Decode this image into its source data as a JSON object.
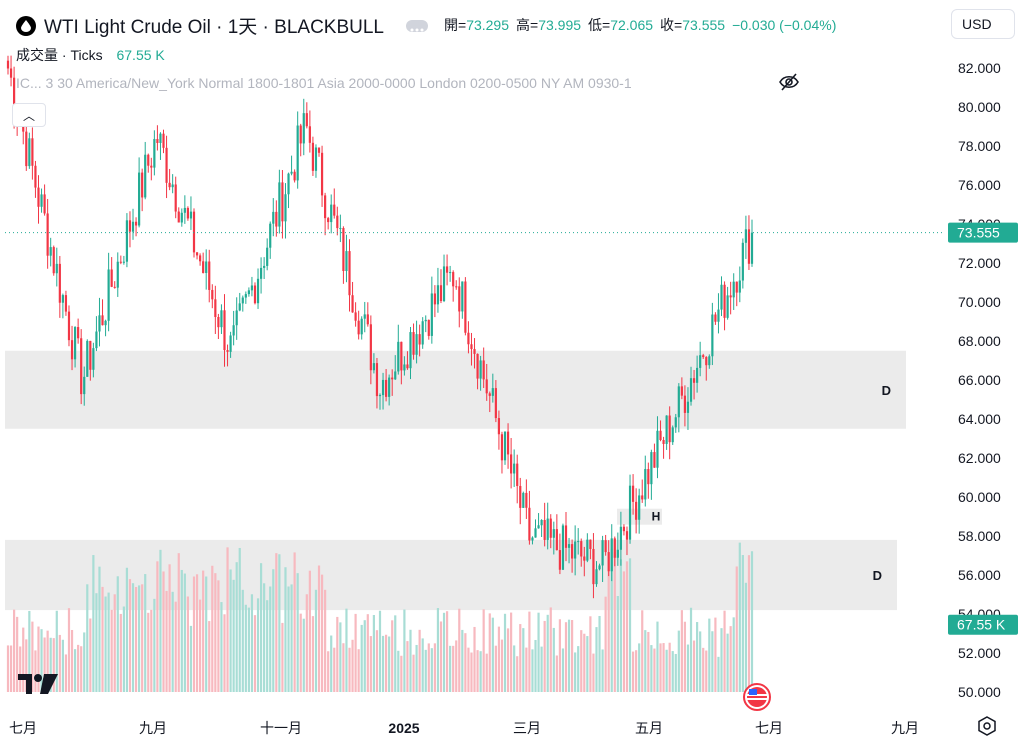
{
  "header": {
    "title": "WTI Light Crude Oil · 1天 · BLACKBULL",
    "ohlc": [
      {
        "label": "開=",
        "value": "73.295"
      },
      {
        "label": "高=",
        "value": "73.995"
      },
      {
        "label": "低=",
        "value": "72.065"
      },
      {
        "label": "收=",
        "value": "73.555"
      },
      {
        "label": "",
        "value": "−0.030 (−0.04%)"
      }
    ],
    "volume_label": "成交量 · Ticks",
    "volume_value": "67.55 K",
    "sessions_text": "IC... 3 30 America/New_York Normal 1800-1801 Asia 2000-0000 London 0200-0500 NY AM 0930-1",
    "currency": "USD",
    "collapse_glyph": "︿"
  },
  "chart_data": {
    "type": "candlestick",
    "y_axis": {
      "ticks": [
        "82.000",
        "80.000",
        "78.000",
        "76.000",
        "74.000",
        "72.000",
        "70.000",
        "68.000",
        "66.000",
        "64.000",
        "62.000",
        "60.000",
        "58.000",
        "56.000",
        "54.000",
        "52.000",
        "50.000"
      ],
      "range": [
        49,
        83.5
      ]
    },
    "x_axis": {
      "ticks": [
        "七月",
        "九月",
        "十一月",
        "2025",
        "三月",
        "五月",
        "七月",
        "九月"
      ]
    },
    "last_price": "73.555",
    "last_volume": "67.55 K",
    "zones": [
      {
        "label": "D",
        "from": 63.5,
        "to": 67.5
      },
      {
        "label": "D",
        "from": 54.2,
        "to": 57.8
      }
    ],
    "zone_small": {
      "label": "H",
      "value": 59.0
    },
    "key_closes": [
      {
        "date": "2024-07",
        "price": 82.0
      },
      {
        "date": "2024-09",
        "price": 66.0
      },
      {
        "date": "2024-10",
        "price": 78.5
      },
      {
        "date": "2024-12",
        "price": 67.5
      },
      {
        "date": "2025-01",
        "price": 79.0
      },
      {
        "date": "2025-03",
        "price": 65.8
      },
      {
        "date": "2025-04",
        "price": 71.5
      },
      {
        "date": "2025-04",
        "price": 58.0
      },
      {
        "date": "2025-05",
        "price": 56.5
      },
      {
        "date": "2025-06",
        "price": 64.5
      },
      {
        "date": "2025-06",
        "price": 73.555
      }
    ],
    "colors": {
      "up": "#22ab94",
      "down": "#f23645",
      "zone": "#ebebeb",
      "last": "#22ab94"
    }
  }
}
